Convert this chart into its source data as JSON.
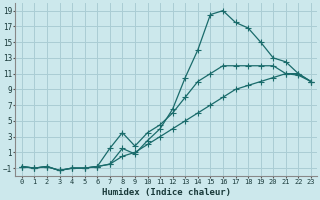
{
  "xlabel": "Humidex (Indice chaleur)",
  "bg_color": "#cce8ec",
  "grid_color": "#aacdd4",
  "line_color": "#1a6b6b",
  "xlim": [
    -0.5,
    23.5
  ],
  "ylim": [
    -2,
    20
  ],
  "xticks": [
    0,
    1,
    2,
    3,
    4,
    5,
    6,
    7,
    8,
    9,
    10,
    11,
    12,
    13,
    14,
    15,
    16,
    17,
    18,
    19,
    20,
    21,
    22,
    23
  ],
  "yticks": [
    -1,
    1,
    3,
    5,
    7,
    9,
    11,
    13,
    15,
    17,
    19
  ],
  "line1_x": [
    0,
    1,
    2,
    3,
    4,
    5,
    6,
    7,
    8,
    9,
    10,
    11,
    12,
    13,
    14,
    15,
    16,
    17,
    18,
    19,
    20,
    21,
    22,
    23
  ],
  "line1_y": [
    -0.8,
    -1,
    -0.8,
    -1.3,
    -1,
    -1,
    -0.8,
    -0.5,
    1.5,
    0.8,
    2.5,
    4,
    6.5,
    10.5,
    14,
    18.5,
    19,
    17.5,
    16.8,
    15,
    13,
    12.5,
    11,
    10
  ],
  "line2_x": [
    0,
    1,
    2,
    3,
    4,
    5,
    6,
    7,
    8,
    9,
    10,
    11,
    12,
    13,
    14,
    15,
    16,
    17,
    18,
    19,
    20,
    21,
    22,
    23
  ],
  "line2_y": [
    -0.8,
    -1,
    -0.8,
    -1.3,
    -1,
    -1,
    -0.8,
    1.5,
    3.5,
    1.8,
    3.5,
    4.5,
    6,
    8,
    10,
    11,
    12,
    12,
    12,
    12,
    12,
    11,
    10.8,
    10
  ],
  "line3_x": [
    0,
    1,
    2,
    3,
    4,
    5,
    6,
    7,
    8,
    9,
    10,
    11,
    12,
    13,
    14,
    15,
    16,
    17,
    18,
    19,
    20,
    21,
    22,
    23
  ],
  "line3_y": [
    -0.8,
    -1,
    -0.8,
    -1.3,
    -1,
    -1,
    -0.8,
    -0.5,
    0.5,
    1,
    2,
    3,
    4,
    5,
    6,
    7,
    8,
    9,
    9.5,
    10,
    10.5,
    11,
    11,
    10
  ]
}
